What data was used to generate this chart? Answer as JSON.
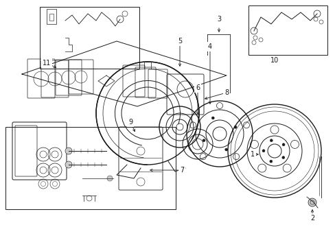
{
  "bg_color": "#ffffff",
  "fig_width": 4.89,
  "fig_height": 3.6,
  "dpi": 100,
  "dark": "#1a1a1a",
  "gray": "#888888",
  "light_gray": "#cccccc",
  "mid_gray": "#999999"
}
